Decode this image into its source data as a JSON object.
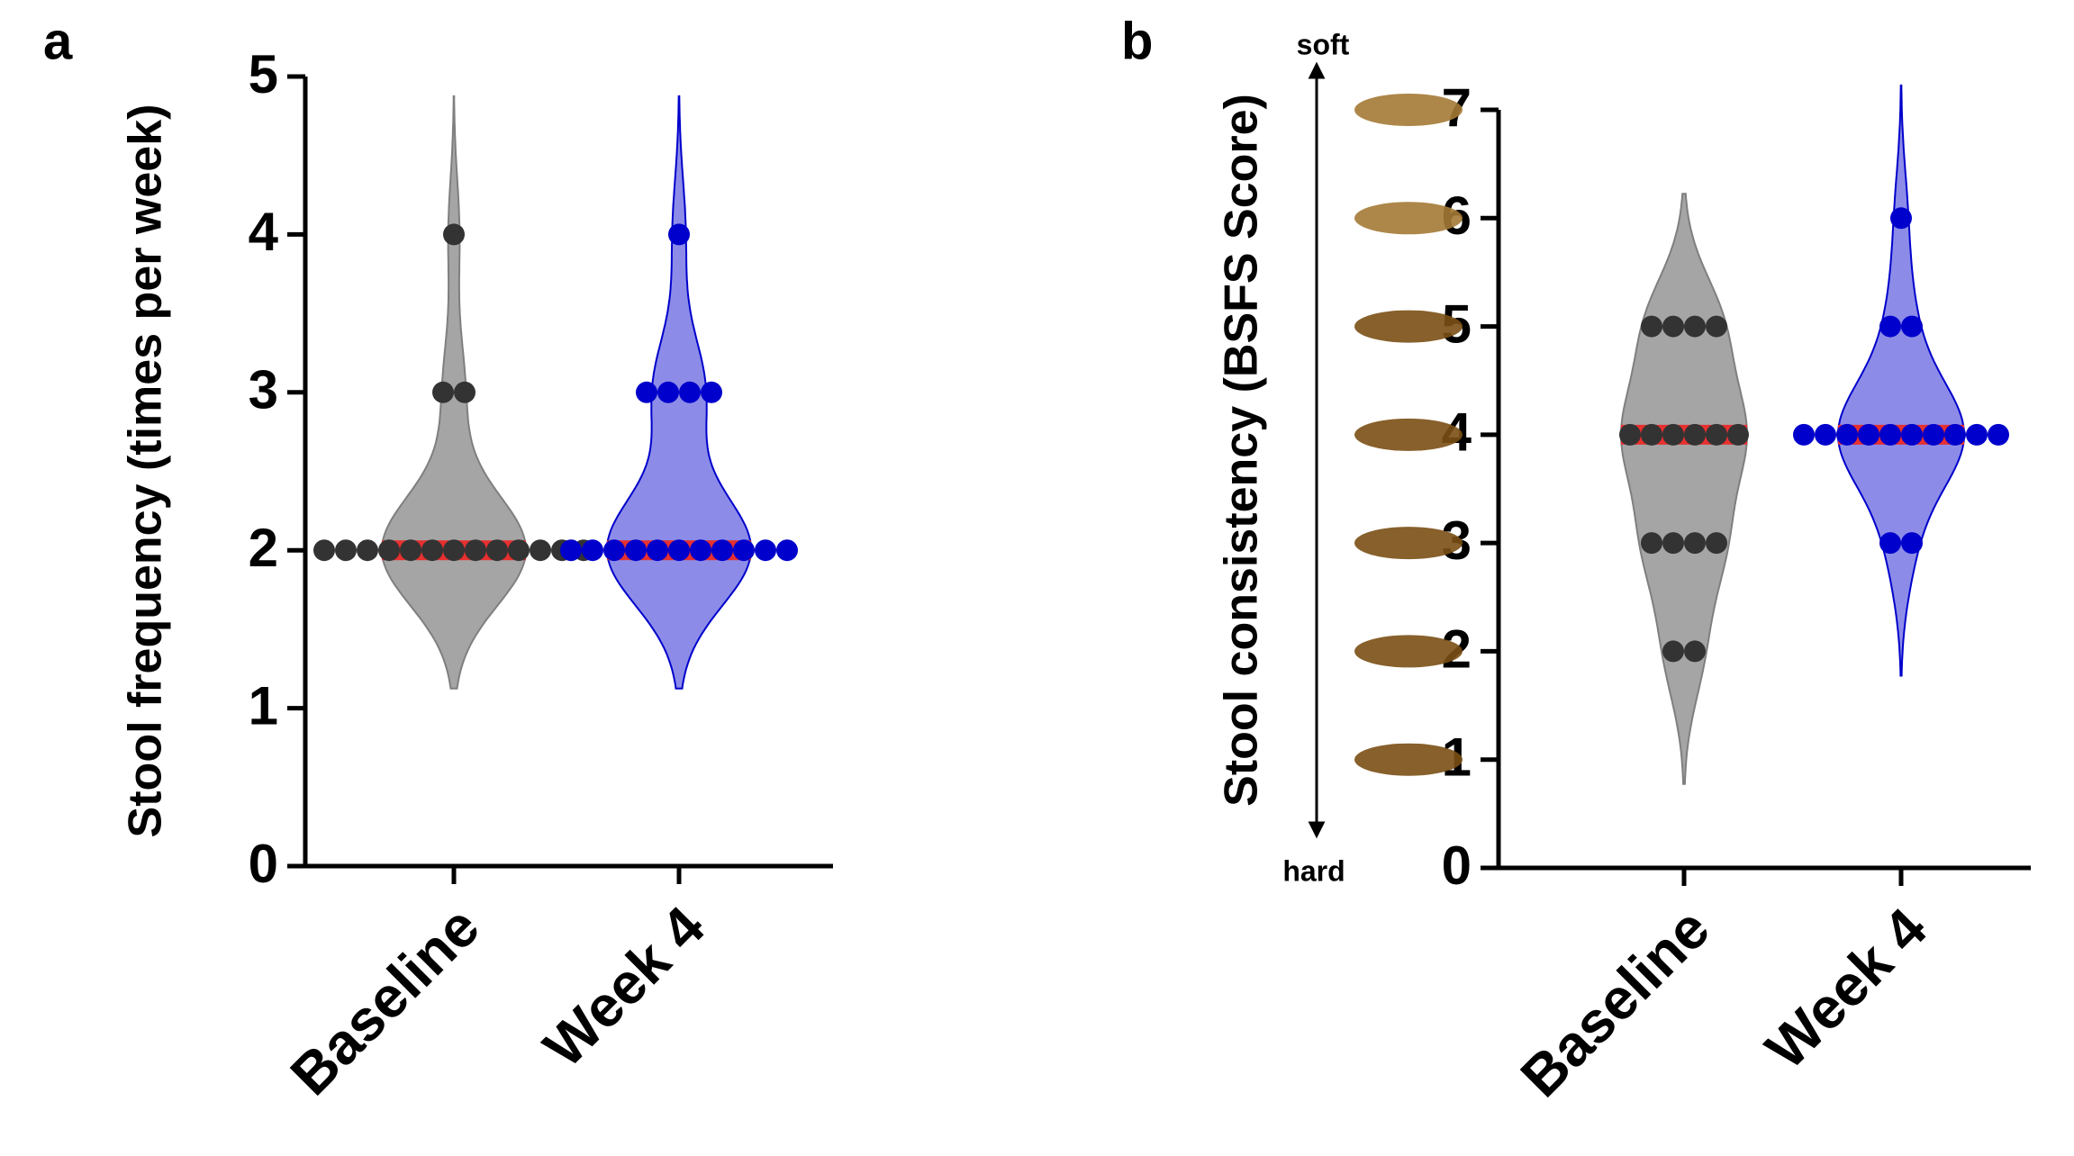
{
  "charts": [
    {
      "type": "violin",
      "panel_label": "a",
      "ylabel": "Stool frequency (times per week)",
      "categories": [
        "Baseline",
        "Week 4"
      ],
      "values": [
        [
          4,
          3,
          3,
          2,
          2,
          2,
          2,
          2,
          2,
          2,
          2,
          2,
          2,
          2,
          2,
          2
        ],
        [
          4,
          3,
          3,
          3,
          3,
          2,
          2,
          2,
          2,
          2,
          2,
          2,
          2,
          2,
          2,
          2
        ]
      ],
      "medians": [
        2,
        2
      ],
      "colors": [
        "#7f7f7f",
        "#0000cc"
      ],
      "median_color": "#e8302f",
      "ylim": [
        0,
        5
      ],
      "yticks": [
        0,
        1,
        2,
        3,
        4,
        5
      ]
    },
    {
      "type": "violin",
      "panel_label": "b",
      "ylabel": "Stool consistency (BSFS Score)",
      "annotations": [
        "soft",
        "hard"
      ],
      "categories": [
        "Baseline",
        "Week 4"
      ],
      "values": [
        [
          5,
          5,
          5,
          5,
          4,
          4,
          4,
          4,
          4,
          4,
          3,
          3,
          3,
          3,
          2,
          2
        ],
        [
          6,
          5,
          5,
          4,
          4,
          4,
          4,
          4,
          4,
          4,
          4,
          4,
          4,
          3,
          3
        ]
      ],
      "medians": [
        4,
        4
      ],
      "colors": [
        "#7f7f7f",
        "#0000cc"
      ],
      "median_color": "#e8302f",
      "ylim": [
        0,
        7
      ],
      "yticks": [
        0,
        1,
        2,
        3,
        4,
        5,
        6,
        7
      ]
    }
  ]
}
